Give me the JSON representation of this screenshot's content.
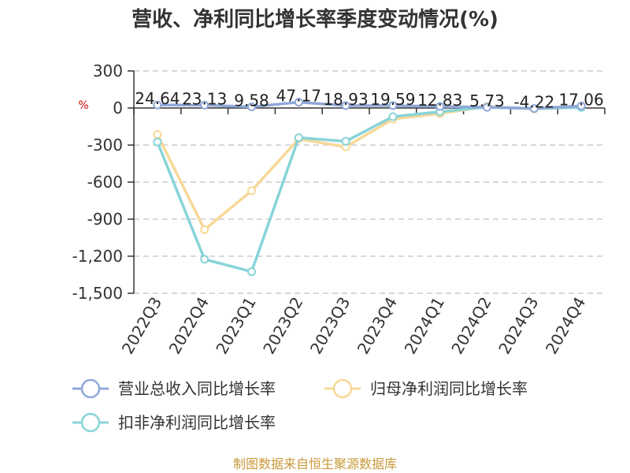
{
  "chart_data": {
    "type": "line",
    "title": "营收、净利同比增长率季度变动情况(%)",
    "unit": "%",
    "categories": [
      "2022Q3",
      "2022Q4",
      "2023Q1",
      "2023Q2",
      "2023Q3",
      "2023Q4",
      "2024Q1",
      "2024Q2",
      "2024Q3",
      "2024Q4"
    ],
    "ylim": [
      -1500,
      300
    ],
    "yticks": [
      300,
      0,
      -300,
      -600,
      -900,
      -1200,
      -1500
    ],
    "ytick_labels": [
      "300",
      "0",
      "-300",
      "-600",
      "-900",
      "-1,200",
      "-1,500"
    ],
    "grid": true,
    "legend_position": "bottom",
    "series": [
      {
        "name": "营业总收入同比增长率",
        "color": "#8fa8d8",
        "values": [
          24.64,
          23.13,
          9.58,
          47.17,
          18.93,
          19.59,
          12.83,
          5.73,
          -4.22,
          17.06
        ],
        "labels": [
          "24.64",
          "23.13",
          "9.58",
          "47.17",
          "18.93",
          "19.59",
          "12.83",
          "5.73",
          "-4.22",
          "17.06"
        ]
      },
      {
        "name": "归母净利润同比增长率",
        "color": "#f8d898",
        "values": [
          -215,
          -985,
          -670,
          -250,
          -315,
          -90,
          -45,
          12,
          -8,
          10
        ]
      },
      {
        "name": "扣非净利润同比增长率",
        "color": "#88d4d8",
        "values": [
          -275,
          -1225,
          -1325,
          -240,
          -270,
          -70,
          -30,
          8,
          -5,
          5
        ]
      }
    ]
  },
  "footer": "制图数据来自恒生聚源数据库"
}
